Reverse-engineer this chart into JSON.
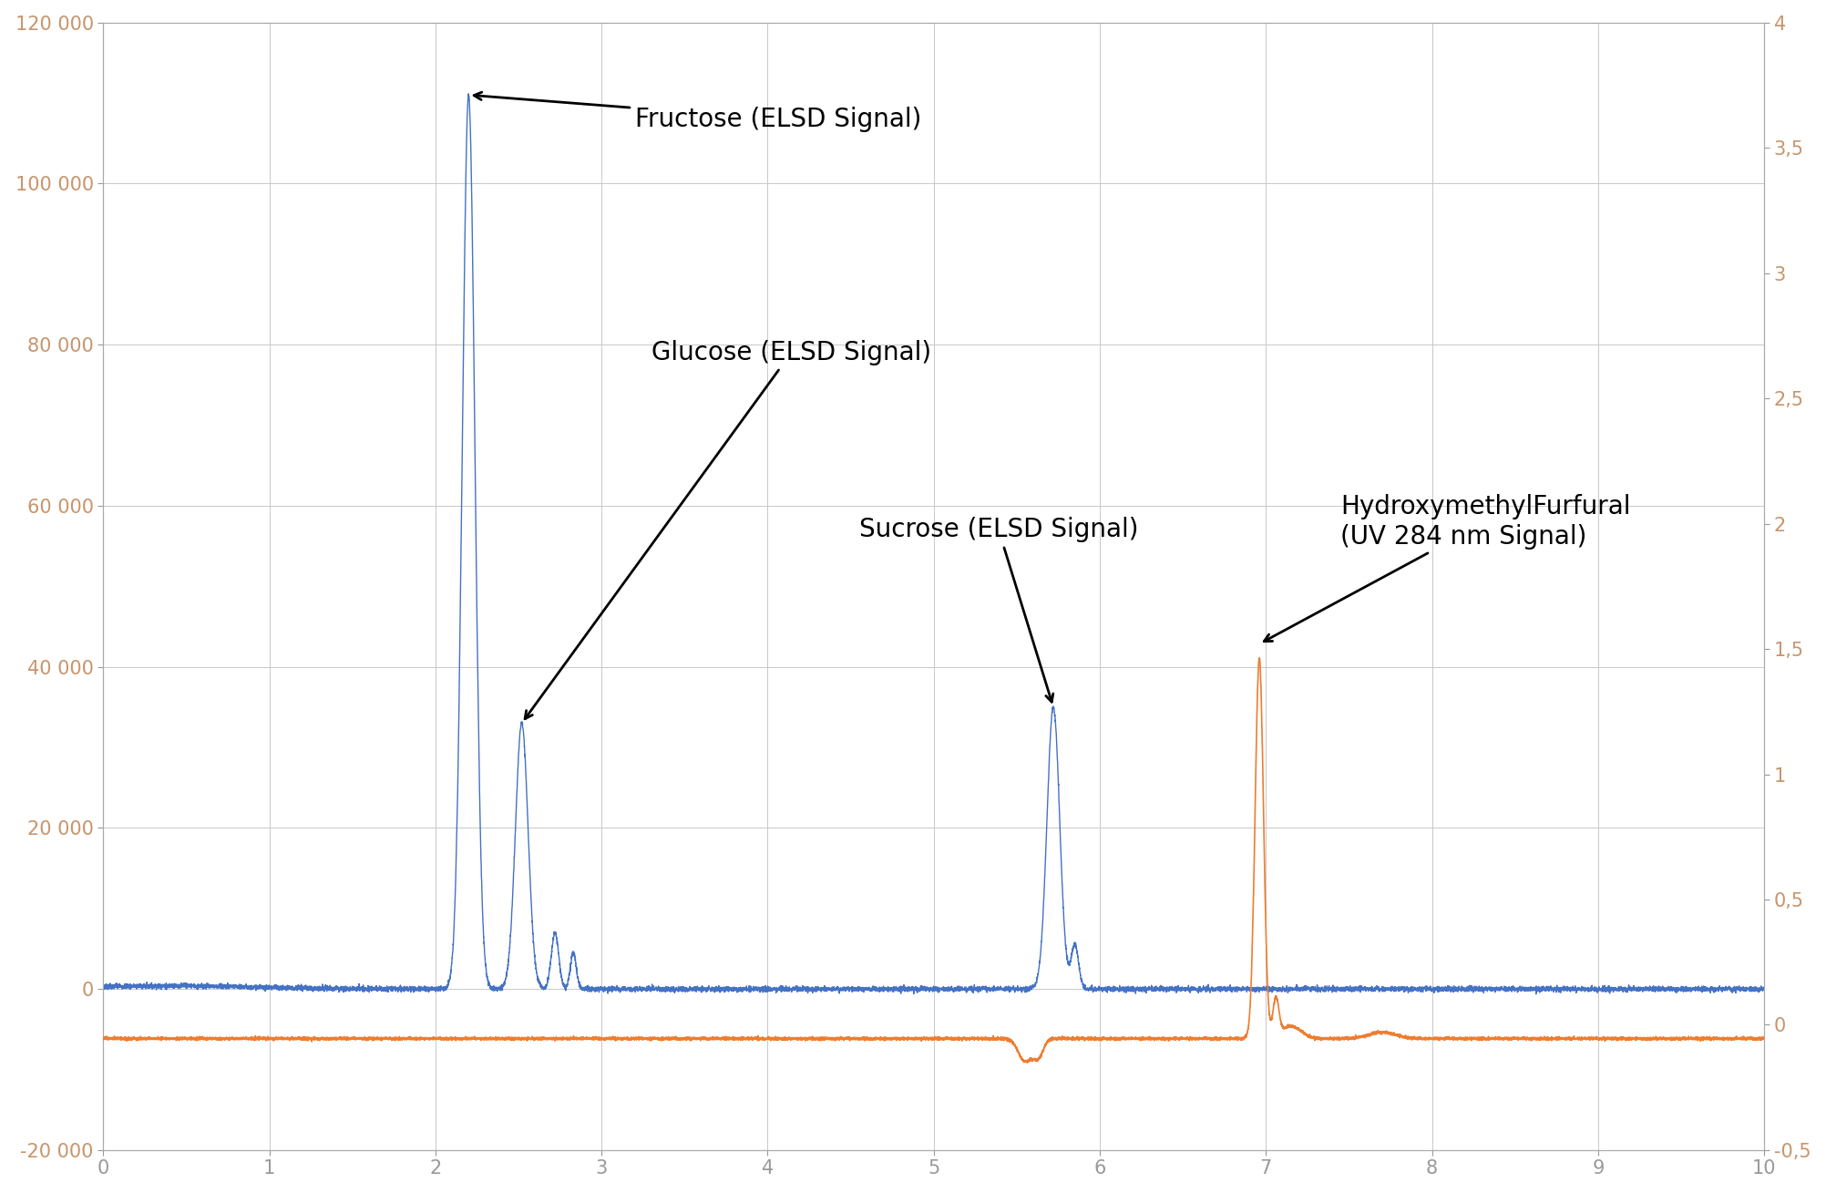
{
  "xlim": [
    0,
    10
  ],
  "ylim_left": [
    -20000,
    120000
  ],
  "ylim_right": [
    -0.5,
    4.0
  ],
  "xticks": [
    0,
    1,
    2,
    3,
    4,
    5,
    6,
    7,
    8,
    9,
    10
  ],
  "yticks_left": [
    -20000,
    0,
    20000,
    40000,
    60000,
    80000,
    100000,
    120000
  ],
  "yticks_right": [
    -0.5,
    0,
    0.5,
    1,
    1.5,
    2,
    2.5,
    3,
    3.5,
    4
  ],
  "blue_color": "#4472c4",
  "orange_color": "#ed7d31",
  "background_color": "#ffffff",
  "grid_color": "#c8c8c8",
  "annotations": [
    {
      "text": "Fructose (ELSD Signal)",
      "xy_x": 2.2,
      "xy_y": 111000,
      "xt_x": 3.2,
      "xt_y": 108000,
      "fontsize": 20
    },
    {
      "text": "Glucose (ELSD Signal)",
      "xy_x": 2.52,
      "xy_y": 33000,
      "xt_x": 3.3,
      "xt_y": 79000,
      "fontsize": 20
    },
    {
      "text": "Sucrose (ELSD Signal)",
      "xy_x": 5.72,
      "xy_y": 35000,
      "xt_x": 4.55,
      "xt_y": 57000,
      "fontsize": 20
    },
    {
      "text": "HydroxymethylFurfural\n(UV 284 nm Signal)",
      "xy_x": 6.96,
      "xy_y": 38000,
      "xt_x": 7.45,
      "xt_y": 58000,
      "fontsize": 20
    }
  ],
  "blue_peaks": [
    {
      "mu": 2.2,
      "sigma": 0.038,
      "amp": 111000
    },
    {
      "mu": 2.52,
      "sigma": 0.038,
      "amp": 33000
    },
    {
      "mu": 2.72,
      "sigma": 0.022,
      "amp": 7000
    },
    {
      "mu": 2.83,
      "sigma": 0.018,
      "amp": 4500
    },
    {
      "mu": 5.72,
      "sigma": 0.038,
      "amp": 35000
    },
    {
      "mu": 5.85,
      "sigma": 0.022,
      "amp": 5500
    }
  ],
  "orange_peaks": [
    {
      "mu": 6.96,
      "sigma": 0.025,
      "amp": 1.52
    },
    {
      "mu": 7.06,
      "sigma": 0.018,
      "amp": 0.15
    },
    {
      "mu": 5.55,
      "sigma": 0.04,
      "amp": -0.09
    },
    {
      "mu": 5.63,
      "sigma": 0.03,
      "amp": -0.07
    }
  ],
  "orange_baseline": -0.055,
  "blue_noise_amp": 150,
  "orange_noise_amp": 0.003
}
